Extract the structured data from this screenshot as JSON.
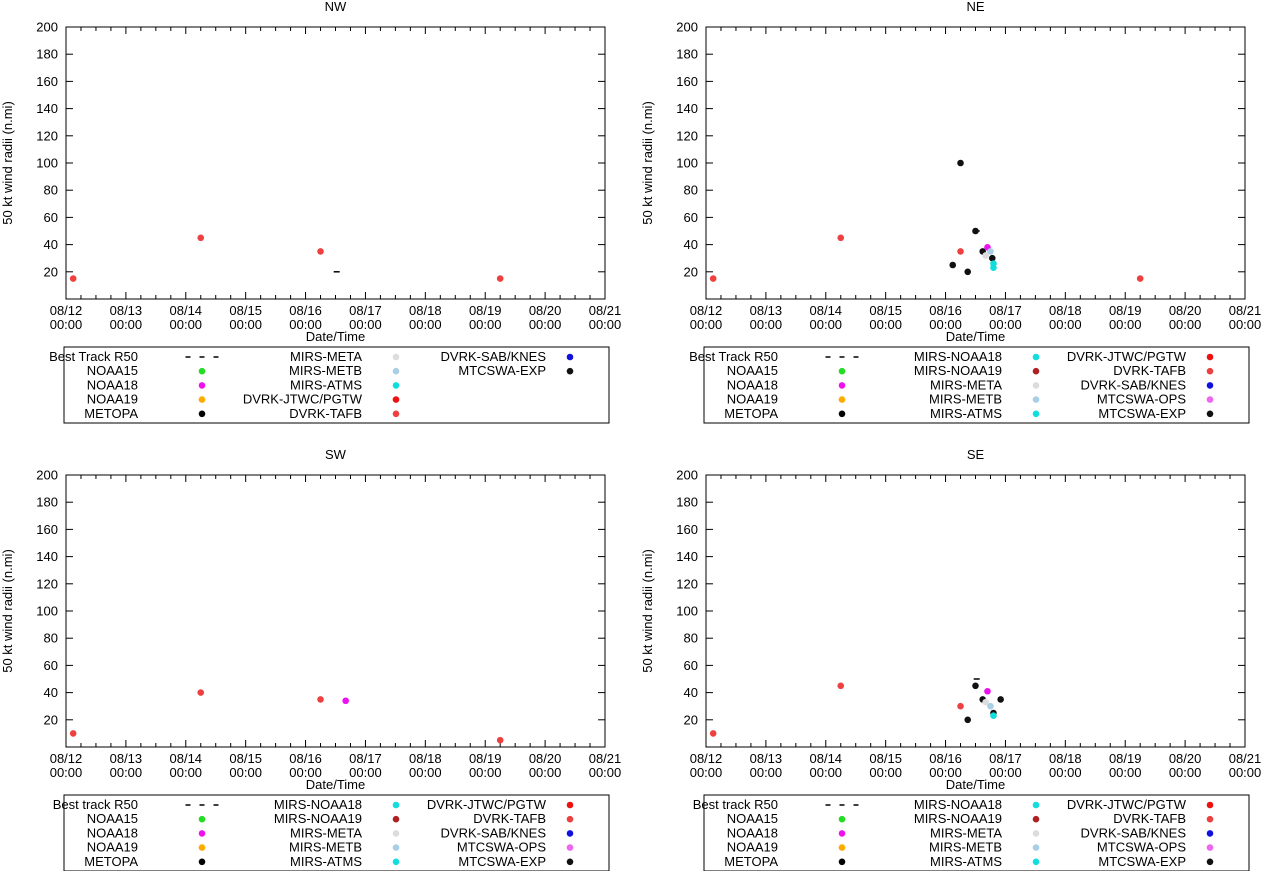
{
  "chart_data": [
    {
      "id": "nw",
      "type": "scatter",
      "title": "NW",
      "xlabel": "Date/Time",
      "ylabel": "50 kt wind radii (n.mi)",
      "xlim": [
        0,
        9
      ],
      "ylim": [
        0,
        200
      ],
      "yticks": [
        20,
        40,
        60,
        80,
        100,
        120,
        140,
        160,
        180,
        200
      ],
      "xticks": [
        {
          "date": "08/12",
          "time": "00:00"
        },
        {
          "date": "08/13",
          "time": "00:00"
        },
        {
          "date": "08/14",
          "time": "00:00"
        },
        {
          "date": "08/15",
          "time": "00:00"
        },
        {
          "date": "08/16",
          "time": "00:00"
        },
        {
          "date": "08/17",
          "time": "00:00"
        },
        {
          "date": "08/18",
          "time": "00:00"
        },
        {
          "date": "08/19",
          "time": "00:00"
        },
        {
          "date": "08/20",
          "time": "00:00"
        },
        {
          "date": "08/21",
          "time": "00:00"
        }
      ],
      "legend_cols": 3,
      "legend": [
        {
          "label": "Best Track R50",
          "marker": "line",
          "color": "#000000"
        },
        {
          "label": "NOAA15",
          "marker": "dot",
          "color": "#22dd22"
        },
        {
          "label": "NOAA18",
          "marker": "dot",
          "color": "#ee11ee"
        },
        {
          "label": "NOAA19",
          "marker": "dot",
          "color": "#ffaa00"
        },
        {
          "label": "METOPA",
          "marker": "dot",
          "color": "#000000"
        },
        {
          "label": "MIRS-META",
          "marker": "dot",
          "color": "#dddddd"
        },
        {
          "label": "MIRS-METB",
          "marker": "dot",
          "color": "#a8cfe6"
        },
        {
          "label": "MIRS-ATMS",
          "marker": "dot",
          "color": "#11dddd"
        },
        {
          "label": "DVRK-JTWC/PGTW",
          "marker": "dot",
          "color": "#ee1111"
        },
        {
          "label": "DVRK-TAFB",
          "marker": "dot",
          "color": "#ee4040"
        },
        {
          "label": "DVRK-SAB/KNES",
          "marker": "dot",
          "color": "#1111dd"
        },
        {
          "label": "MTCSWA-EXP",
          "marker": "dot",
          "color": "#111111"
        }
      ],
      "best_track": [
        {
          "x": 4.52,
          "y": 20
        }
      ],
      "points": [
        {
          "x": 0.12,
          "y": 15,
          "color": "#ee4040"
        },
        {
          "x": 2.25,
          "y": 45,
          "color": "#ee4040"
        },
        {
          "x": 4.25,
          "y": 35,
          "color": "#ee4040"
        },
        {
          "x": 7.25,
          "y": 15,
          "color": "#ee4040"
        }
      ]
    },
    {
      "id": "ne",
      "type": "scatter",
      "title": "NE",
      "xlabel": "Date/Time",
      "ylabel": "50 kt wind radii (n.mi)",
      "xlim": [
        0,
        9
      ],
      "ylim": [
        0,
        200
      ],
      "yticks": [
        20,
        40,
        60,
        80,
        100,
        120,
        140,
        160,
        180,
        200
      ],
      "xticks": [
        {
          "date": "08/12",
          "time": "00:00"
        },
        {
          "date": "08/13",
          "time": "00:00"
        },
        {
          "date": "08/14",
          "time": "00:00"
        },
        {
          "date": "08/15",
          "time": "00:00"
        },
        {
          "date": "08/16",
          "time": "00:00"
        },
        {
          "date": "08/17",
          "time": "00:00"
        },
        {
          "date": "08/18",
          "time": "00:00"
        },
        {
          "date": "08/19",
          "time": "00:00"
        },
        {
          "date": "08/20",
          "time": "00:00"
        },
        {
          "date": "08/21",
          "time": "00:00"
        }
      ],
      "legend_cols": 3,
      "legend": [
        {
          "label": "Best Track R50",
          "marker": "line",
          "color": "#000000"
        },
        {
          "label": "NOAA15",
          "marker": "dot",
          "color": "#22dd22"
        },
        {
          "label": "NOAA18",
          "marker": "dot",
          "color": "#ee11ee"
        },
        {
          "label": "NOAA19",
          "marker": "dot",
          "color": "#ffaa00"
        },
        {
          "label": "METOPA",
          "marker": "dot",
          "color": "#000000"
        },
        {
          "label": "MIRS-NOAA18",
          "marker": "dot",
          "color": "#11dddd"
        },
        {
          "label": "MIRS-NOAA19",
          "marker": "dot",
          "color": "#aa2222"
        },
        {
          "label": "MIRS-META",
          "marker": "dot",
          "color": "#dddddd"
        },
        {
          "label": "MIRS-METB",
          "marker": "dot",
          "color": "#a8cfe6"
        },
        {
          "label": "MIRS-ATMS",
          "marker": "dot",
          "color": "#11dddd"
        },
        {
          "label": "DVRK-JTWC/PGTW",
          "marker": "dot",
          "color": "#ee1111"
        },
        {
          "label": "DVRK-TAFB",
          "marker": "dot",
          "color": "#ee4040"
        },
        {
          "label": "DVRK-SAB/KNES",
          "marker": "dot",
          "color": "#1111dd"
        },
        {
          "label": "MTCSWA-OPS",
          "marker": "dot",
          "color": "#ee66ee"
        },
        {
          "label": "MTCSWA-EXP",
          "marker": "dot",
          "color": "#111111"
        }
      ],
      "best_track": [
        {
          "x": 4.52,
          "y": 50
        }
      ],
      "points": [
        {
          "x": 0.12,
          "y": 15,
          "color": "#ee4040"
        },
        {
          "x": 2.25,
          "y": 45,
          "color": "#ee4040"
        },
        {
          "x": 4.25,
          "y": 100,
          "color": "#111111"
        },
        {
          "x": 4.25,
          "y": 35,
          "color": "#ee4040"
        },
        {
          "x": 4.12,
          "y": 25,
          "color": "#111111"
        },
        {
          "x": 4.37,
          "y": 20,
          "color": "#111111"
        },
        {
          "x": 4.5,
          "y": 50,
          "color": "#111111"
        },
        {
          "x": 4.62,
          "y": 35,
          "color": "#111111"
        },
        {
          "x": 4.67,
          "y": 32,
          "color": "#dddddd"
        },
        {
          "x": 4.7,
          "y": 38,
          "color": "#ee11ee"
        },
        {
          "x": 4.75,
          "y": 35,
          "color": "#a8cfe6"
        },
        {
          "x": 4.78,
          "y": 30,
          "color": "#111111"
        },
        {
          "x": 4.8,
          "y": 26,
          "color": "#11dddd"
        },
        {
          "x": 4.8,
          "y": 23,
          "color": "#11dddd"
        },
        {
          "x": 7.25,
          "y": 15,
          "color": "#ee4040"
        }
      ]
    },
    {
      "id": "sw",
      "type": "scatter",
      "title": "SW",
      "xlabel": "Date/Time",
      "ylabel": "50 kt wind radii (n.mi)",
      "xlim": [
        0,
        9
      ],
      "ylim": [
        0,
        200
      ],
      "yticks": [
        20,
        40,
        60,
        80,
        100,
        120,
        140,
        160,
        180,
        200
      ],
      "xticks": [
        {
          "date": "08/12",
          "time": "00:00"
        },
        {
          "date": "08/13",
          "time": "00:00"
        },
        {
          "date": "08/14",
          "time": "00:00"
        },
        {
          "date": "08/15",
          "time": "00:00"
        },
        {
          "date": "08/16",
          "time": "00:00"
        },
        {
          "date": "08/17",
          "time": "00:00"
        },
        {
          "date": "08/18",
          "time": "00:00"
        },
        {
          "date": "08/19",
          "time": "00:00"
        },
        {
          "date": "08/20",
          "time": "00:00"
        },
        {
          "date": "08/21",
          "time": "00:00"
        }
      ],
      "legend_cols": 3,
      "legend": [
        {
          "label": "Best track R50",
          "marker": "line",
          "color": "#000000"
        },
        {
          "label": "NOAA15",
          "marker": "dot",
          "color": "#22dd22"
        },
        {
          "label": "NOAA18",
          "marker": "dot",
          "color": "#ee11ee"
        },
        {
          "label": "NOAA19",
          "marker": "dot",
          "color": "#ffaa00"
        },
        {
          "label": "METOPA",
          "marker": "dot",
          "color": "#000000"
        },
        {
          "label": "MIRS-NOAA18",
          "marker": "dot",
          "color": "#11dddd"
        },
        {
          "label": "MIRS-NOAA19",
          "marker": "dot",
          "color": "#aa2222"
        },
        {
          "label": "MIRS-META",
          "marker": "dot",
          "color": "#dddddd"
        },
        {
          "label": "MIRS-METB",
          "marker": "dot",
          "color": "#a8cfe6"
        },
        {
          "label": "MIRS-ATMS",
          "marker": "dot",
          "color": "#11dddd"
        },
        {
          "label": "DVRK-JTWC/PGTW",
          "marker": "dot",
          "color": "#ee1111"
        },
        {
          "label": "DVRK-TAFB",
          "marker": "dot",
          "color": "#ee4040"
        },
        {
          "label": "DVRK-SAB/KNES",
          "marker": "dot",
          "color": "#1111dd"
        },
        {
          "label": "MTCSWA-OPS",
          "marker": "dot",
          "color": "#ee66ee"
        },
        {
          "label": "MTCSWA-EXP",
          "marker": "dot",
          "color": "#111111"
        }
      ],
      "best_track": [],
      "points": [
        {
          "x": 0.12,
          "y": 10,
          "color": "#ee4040"
        },
        {
          "x": 2.25,
          "y": 40,
          "color": "#ee4040"
        },
        {
          "x": 4.25,
          "y": 35,
          "color": "#ee4040"
        },
        {
          "x": 4.67,
          "y": 34,
          "color": "#ee11ee"
        },
        {
          "x": 7.25,
          "y": 5,
          "color": "#ee4040"
        }
      ]
    },
    {
      "id": "se",
      "type": "scatter",
      "title": "SE",
      "xlabel": "Date/Time",
      "ylabel": "50 kt wind radii (n.mi)",
      "xlim": [
        0,
        9
      ],
      "ylim": [
        0,
        200
      ],
      "yticks": [
        20,
        40,
        60,
        80,
        100,
        120,
        140,
        160,
        180,
        200
      ],
      "xticks": [
        {
          "date": "08/12",
          "time": "00:00"
        },
        {
          "date": "08/13",
          "time": "00:00"
        },
        {
          "date": "08/14",
          "time": "00:00"
        },
        {
          "date": "08/15",
          "time": "00:00"
        },
        {
          "date": "08/16",
          "time": "00:00"
        },
        {
          "date": "08/17",
          "time": "00:00"
        },
        {
          "date": "08/18",
          "time": "00:00"
        },
        {
          "date": "08/19",
          "time": "00:00"
        },
        {
          "date": "08/20",
          "time": "00:00"
        },
        {
          "date": "08/21",
          "time": "00:00"
        }
      ],
      "legend_cols": 3,
      "legend": [
        {
          "label": "Best track R50",
          "marker": "line",
          "color": "#000000"
        },
        {
          "label": "NOAA15",
          "marker": "dot",
          "color": "#22dd22"
        },
        {
          "label": "NOAA18",
          "marker": "dot",
          "color": "#ee11ee"
        },
        {
          "label": "NOAA19",
          "marker": "dot",
          "color": "#ffaa00"
        },
        {
          "label": "METOPA",
          "marker": "dot",
          "color": "#000000"
        },
        {
          "label": "MIRS-NOAA18",
          "marker": "dot",
          "color": "#11dddd"
        },
        {
          "label": "MIRS-NOAA19",
          "marker": "dot",
          "color": "#aa2222"
        },
        {
          "label": "MIRS-META",
          "marker": "dot",
          "color": "#dddddd"
        },
        {
          "label": "MIRS-METB",
          "marker": "dot",
          "color": "#a8cfe6"
        },
        {
          "label": "MIRS-ATMS",
          "marker": "dot",
          "color": "#11dddd"
        },
        {
          "label": "DVRK-JTWC/PGTW",
          "marker": "dot",
          "color": "#ee1111"
        },
        {
          "label": "DVRK-TAFB",
          "marker": "dot",
          "color": "#ee4040"
        },
        {
          "label": "DVRK-SAB/KNES",
          "marker": "dot",
          "color": "#1111dd"
        },
        {
          "label": "MTCSWA-OPS",
          "marker": "dot",
          "color": "#ee66ee"
        },
        {
          "label": "MTCSWA-EXP",
          "marker": "dot",
          "color": "#111111"
        }
      ],
      "best_track": [
        {
          "x": 4.52,
          "y": 50
        }
      ],
      "points": [
        {
          "x": 0.12,
          "y": 10,
          "color": "#ee4040"
        },
        {
          "x": 2.25,
          "y": 45,
          "color": "#ee4040"
        },
        {
          "x": 4.25,
          "y": 30,
          "color": "#ee4040"
        },
        {
          "x": 4.37,
          "y": 20,
          "color": "#111111"
        },
        {
          "x": 4.5,
          "y": 45,
          "color": "#111111"
        },
        {
          "x": 4.62,
          "y": 35,
          "color": "#111111"
        },
        {
          "x": 4.67,
          "y": 33,
          "color": "#dddddd"
        },
        {
          "x": 4.7,
          "y": 41,
          "color": "#ee11ee"
        },
        {
          "x": 4.75,
          "y": 30,
          "color": "#a8cfe6"
        },
        {
          "x": 4.8,
          "y": 25,
          "color": "#111111"
        },
        {
          "x": 4.8,
          "y": 23,
          "color": "#11dddd"
        },
        {
          "x": 4.92,
          "y": 35,
          "color": "#111111"
        }
      ]
    }
  ]
}
